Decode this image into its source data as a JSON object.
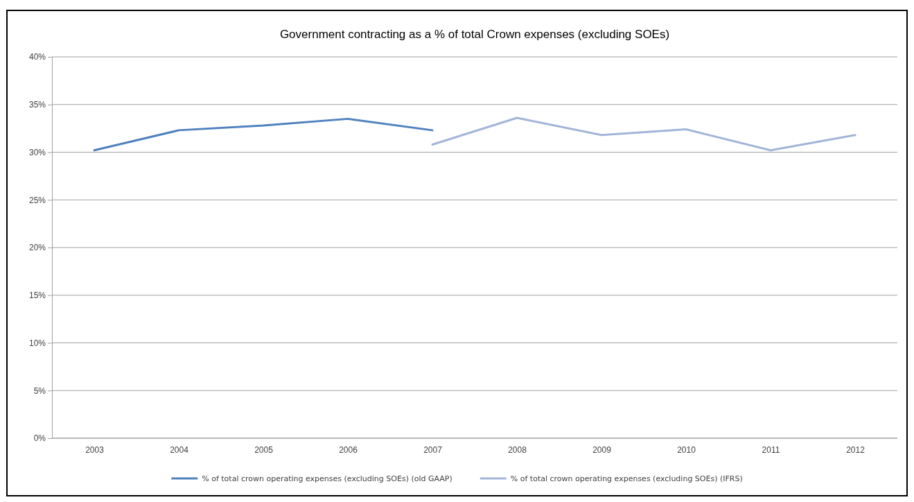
{
  "chart_data": {
    "type": "line",
    "title": "Government contracting as a % of total Crown expenses (excluding SOEs)",
    "categories": [
      "2003",
      "2004",
      "2005",
      "2006",
      "2007",
      "2008",
      "2009",
      "2010",
      "2011",
      "2012"
    ],
    "series": [
      {
        "name": "% of total crown operating expenses (excluding SOEs) (old GAAP)",
        "color": "#4f81bd",
        "values": [
          30.2,
          32.3,
          32.8,
          33.5,
          32.3,
          null,
          null,
          null,
          null,
          null
        ]
      },
      {
        "name": "% of total crown operating expenses (excluding SOEs) (IFRS)",
        "color": "#a2b5d8",
        "values": [
          null,
          null,
          null,
          null,
          30.8,
          33.6,
          31.8,
          32.4,
          30.2,
          31.8
        ]
      }
    ],
    "ylim": [
      0,
      40
    ],
    "yticks": [
      {
        "value": 0,
        "label": "0%"
      },
      {
        "value": 5,
        "label": "5%"
      },
      {
        "value": 10,
        "label": "10%"
      },
      {
        "value": 15,
        "label": "15%"
      },
      {
        "value": 20,
        "label": "20%"
      },
      {
        "value": 25,
        "label": "25%"
      },
      {
        "value": 30,
        "label": "30%"
      },
      {
        "value": 35,
        "label": "35%"
      },
      {
        "value": 40,
        "label": "40%"
      }
    ],
    "grid": "y",
    "legend": "bottom",
    "marker": "none",
    "line_style": "solid"
  }
}
